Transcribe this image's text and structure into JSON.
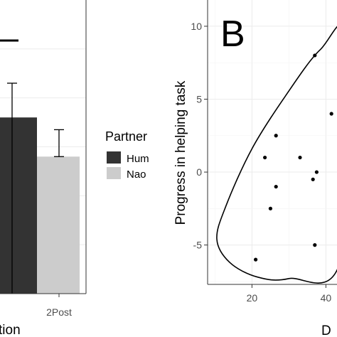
{
  "chart_data": [
    {
      "type": "bar",
      "categories": [
        "",
        "2Post"
      ],
      "x_label_fragment": "tion",
      "legend": {
        "title": "Partner",
        "position": "right",
        "entries": [
          {
            "name": "Hum",
            "color": "#333333"
          },
          {
            "name": "Nao",
            "color": "#cccccc"
          }
        ]
      },
      "bars": [
        {
          "category": "",
          "series": "Hum",
          "value": 0.72,
          "error_upper": 0.86,
          "error_lower": 0
        },
        {
          "category": "2Post",
          "series": "Nao",
          "value": 0.56,
          "error_upper": 0.67,
          "error_lower": 0.56
        }
      ],
      "significance_bar": true,
      "grid": true
    },
    {
      "type": "scatter",
      "panel_letter": "B",
      "ylabel": "Progress in helping task",
      "xlabel_fragment": "D",
      "x_ticks": [
        "20",
        "40"
      ],
      "y_ticks": [
        "10",
        "5",
        "0",
        "-5"
      ],
      "xlim": [
        8,
        43
      ],
      "ylim": [
        -7.7,
        11.8
      ],
      "grid": true,
      "points": [
        {
          "x": 21,
          "y": -6.0
        },
        {
          "x": 23.5,
          "y": 1.0
        },
        {
          "x": 25,
          "y": -2.5
        },
        {
          "x": 26.5,
          "y": 2.5
        },
        {
          "x": 26.5,
          "y": -1.0
        },
        {
          "x": 33,
          "y": 1.0
        },
        {
          "x": 36.5,
          "y": -0.5
        },
        {
          "x": 37,
          "y": 8.0
        },
        {
          "x": 37,
          "y": -5.0
        },
        {
          "x": 37.5,
          "y": 0.0
        },
        {
          "x": 41.5,
          "y": 4.0
        }
      ],
      "ellipse": true
    }
  ]
}
